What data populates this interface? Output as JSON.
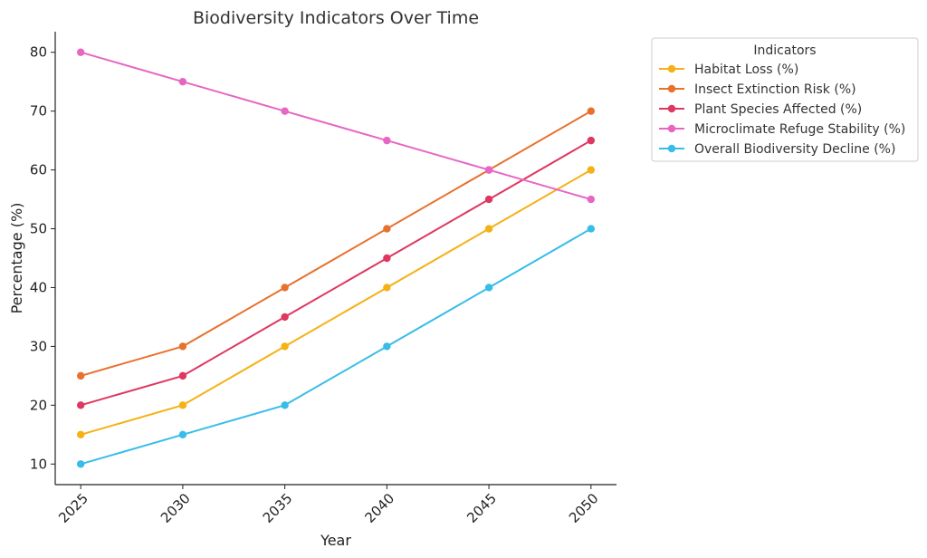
{
  "chart_data": {
    "type": "line",
    "title": "Biodiversity Indicators Over Time",
    "xlabel": "Year",
    "ylabel": "Percentage (%)",
    "x": [
      2025,
      2030,
      2035,
      2040,
      2045,
      2050
    ],
    "x_tick_labels": [
      "2025",
      "2030",
      "2035",
      "2040",
      "2045",
      "2050"
    ],
    "y_ticks": [
      10,
      20,
      30,
      40,
      50,
      60,
      70,
      80
    ],
    "y_tick_labels": [
      "10",
      "20",
      "30",
      "40",
      "50",
      "60",
      "70",
      "80"
    ],
    "ylim": [
      6.5,
      83.5
    ],
    "xlim": [
      2023.75,
      2051.25
    ],
    "grid": false,
    "legend": {
      "title": "Indicators",
      "placement": "outside-top-right"
    },
    "series": [
      {
        "name": "Habitat Loss (%)",
        "color": "#F5B115",
        "values": [
          15,
          20,
          30,
          40,
          50,
          60
        ]
      },
      {
        "name": "Insect Extinction Risk (%)",
        "color": "#E8712E",
        "values": [
          25,
          30,
          40,
          50,
          60,
          70
        ]
      },
      {
        "name": "Plant Species Affected (%)",
        "color": "#DF3760",
        "values": [
          20,
          25,
          35,
          45,
          55,
          65
        ]
      },
      {
        "name": "Microclimate Refuge Stability (%)",
        "color": "#E766C4",
        "values": [
          80,
          75,
          70,
          65,
          60,
          55
        ]
      },
      {
        "name": "Overall Biodiversity Decline (%)",
        "color": "#38BDE8",
        "values": [
          10,
          15,
          20,
          30,
          40,
          50
        ]
      }
    ]
  }
}
